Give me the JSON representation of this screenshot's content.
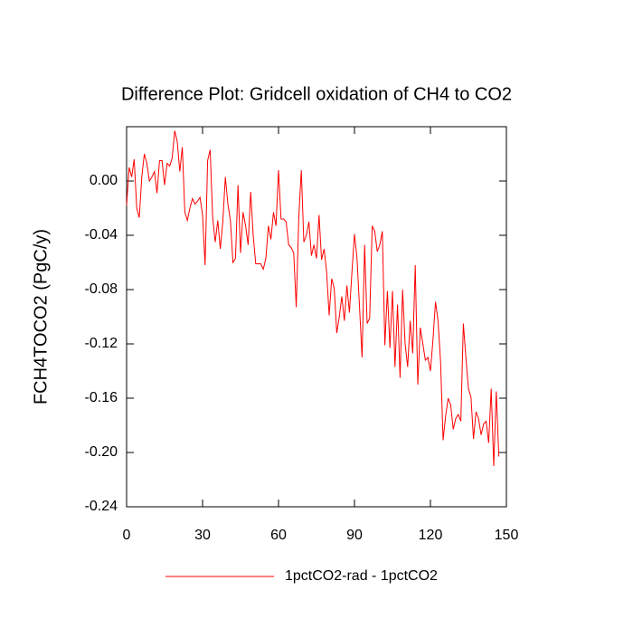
{
  "chart_data": {
    "type": "line",
    "title": "Difference Plot: Gridcell oxidation of CH4 to CO2",
    "y_label": "FCH4TOCO2  (PgC/y)",
    "x": [
      0,
      1,
      2,
      3,
      4,
      5,
      6,
      7,
      8,
      9,
      10,
      11,
      12,
      13,
      14,
      15,
      16,
      17,
      18,
      19,
      20,
      21,
      22,
      23,
      24,
      25,
      26,
      27,
      28,
      29,
      30,
      31,
      32,
      33,
      34,
      35,
      36,
      37,
      38,
      39,
      40,
      41,
      42,
      43,
      44,
      45,
      46,
      47,
      48,
      49,
      50,
      51,
      52,
      53,
      54,
      55,
      56,
      57,
      58,
      59,
      60,
      61,
      62,
      63,
      64,
      65,
      66,
      67,
      68,
      69,
      70,
      71,
      72,
      73,
      74,
      75,
      76,
      77,
      78,
      79,
      80,
      81,
      82,
      83,
      84,
      85,
      86,
      87,
      88,
      89,
      90,
      91,
      92,
      93,
      94,
      95,
      96,
      97,
      98,
      99,
      100,
      101,
      102,
      103,
      104,
      105,
      106,
      107,
      108,
      109,
      110,
      111,
      112,
      113,
      114,
      115,
      116,
      117,
      118,
      119,
      120,
      121,
      122,
      123,
      124,
      125,
      126,
      127,
      128,
      129,
      130,
      131,
      132,
      133,
      134,
      135,
      136,
      137,
      138,
      139,
      140,
      141,
      142,
      143,
      144,
      145,
      146,
      147
    ],
    "series": [
      {
        "name": "1pctCO2-rad - 1pctCO2",
        "color": "#ff0000",
        "values": [
          -0.018,
          0.01,
          0.003,
          0.016,
          -0.02,
          -0.027,
          0.003,
          0.02,
          0.013,
          0.0,
          0.003,
          0.007,
          -0.009,
          0.015,
          0.015,
          -0.003,
          0.013,
          0.011,
          0.017,
          0.037,
          0.029,
          0.007,
          0.025,
          -0.023,
          -0.029,
          -0.02,
          -0.013,
          -0.017,
          -0.015,
          -0.012,
          -0.025,
          -0.062,
          0.015,
          0.023,
          -0.027,
          -0.045,
          -0.029,
          -0.05,
          -0.03,
          0.003,
          -0.017,
          -0.029,
          -0.06,
          -0.057,
          -0.003,
          -0.053,
          -0.023,
          -0.033,
          -0.047,
          -0.008,
          -0.04,
          -0.061,
          -0.061,
          -0.061,
          -0.065,
          -0.057,
          -0.033,
          -0.043,
          -0.023,
          -0.033,
          0.008,
          -0.028,
          -0.028,
          -0.03,
          -0.047,
          -0.049,
          -0.053,
          -0.093,
          -0.027,
          0.008,
          -0.045,
          -0.04,
          -0.03,
          -0.055,
          -0.047,
          -0.057,
          -0.025,
          -0.058,
          -0.05,
          -0.067,
          -0.099,
          -0.072,
          -0.079,
          -0.112,
          -0.1,
          -0.085,
          -0.103,
          -0.077,
          -0.097,
          -0.067,
          -0.039,
          -0.057,
          -0.093,
          -0.13,
          -0.047,
          -0.105,
          -0.101,
          -0.033,
          -0.037,
          -0.052,
          -0.047,
          -0.037,
          -0.121,
          -0.081,
          -0.123,
          -0.081,
          -0.137,
          -0.091,
          -0.145,
          -0.08,
          -0.12,
          -0.137,
          -0.103,
          -0.127,
          -0.062,
          -0.15,
          -0.108,
          -0.12,
          -0.132,
          -0.13,
          -0.14,
          -0.117,
          -0.089,
          -0.103,
          -0.133,
          -0.191,
          -0.173,
          -0.16,
          -0.165,
          -0.183,
          -0.175,
          -0.172,
          -0.177,
          -0.105,
          -0.13,
          -0.153,
          -0.159,
          -0.19,
          -0.17,
          -0.175,
          -0.187,
          -0.179,
          -0.177,
          -0.193,
          -0.153,
          -0.21,
          -0.155,
          -0.203
        ]
      }
    ],
    "xlim": [
      0,
      150
    ],
    "xticks": [
      0,
      30,
      60,
      90,
      120,
      150
    ],
    "ylim": [
      -0.24,
      0.04
    ],
    "yticks": [
      -0.24,
      {
        "value": -0.2,
        "label": "-0.20"
      },
      -0.16,
      -0.12,
      -0.08,
      -0.04,
      {
        "value": 0,
        "label": "0.00"
      }
    ]
  }
}
